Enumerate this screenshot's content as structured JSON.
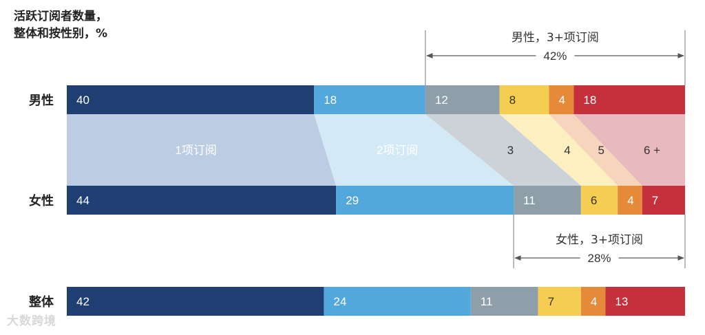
{
  "title": [
    "活跃订阅者数量，",
    "整体和按性别，%"
  ],
  "chart_data": {
    "type": "bar",
    "stacked": true,
    "orientation": "horizontal",
    "unit": "%",
    "segments": [
      "1项订阅",
      "2项订阅",
      "3",
      "4",
      "5",
      "6 +"
    ],
    "colors": [
      "#1f3f73",
      "#52a7dd",
      "#8e9fa9",
      "#f5cd52",
      "#e58a38",
      "#c4313a"
    ],
    "band_colors": [
      "#bccde3",
      "#d3e9f6",
      "#ccd3d8",
      "#fcefc0",
      "#f6d5bc",
      "#e8b9bd"
    ],
    "rows": [
      {
        "name": "男性",
        "values": [
          40,
          18,
          12,
          8,
          4,
          18
        ]
      },
      {
        "name": "女性",
        "values": [
          44,
          29,
          11,
          6,
          4,
          7
        ]
      },
      {
        "name": "整体",
        "values": [
          42,
          24,
          11,
          7,
          4,
          13
        ]
      }
    ],
    "annotations": [
      {
        "row": "男性",
        "label": "男性，3+项订阅",
        "value": "42%"
      },
      {
        "row": "女性",
        "label": "女性，3+项订阅",
        "value": "28%"
      }
    ]
  },
  "watermark": "大数跨境"
}
